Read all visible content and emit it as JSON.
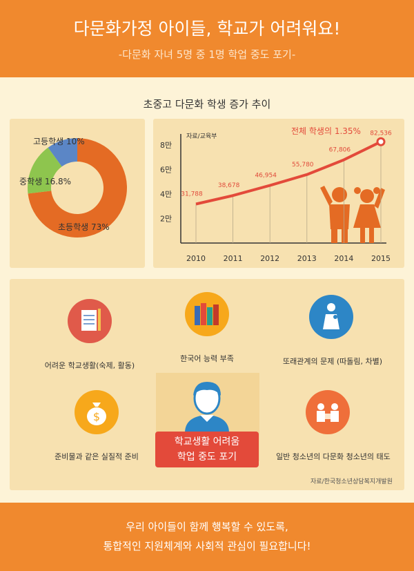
{
  "header": {
    "title": "다문화가정 아이들, 학교가 어려워요!",
    "subtitle": "-다문화 자녀 5명 중 1명 학업 중도 포기-"
  },
  "section_title": "초중고 다문화 학생 증가 추이",
  "colors": {
    "orange": "#f0892e",
    "dark_orange": "#e46b24",
    "green": "#8ec54e",
    "blue": "#5b86c6",
    "red": "#e34a3a",
    "cream": "#fdf3d7",
    "panel": "#f7e1b0"
  },
  "chart_data": [
    {
      "type": "pie",
      "donut": true,
      "slices": [
        {
          "label": "초등학생 73%",
          "value": 73
        },
        {
          "label": "중학생 16.8%",
          "value": 16.8
        },
        {
          "label": "고등학생 10%",
          "value": 10
        }
      ]
    },
    {
      "type": "line",
      "source": "자료/교육부",
      "annotation": "전체 학생의 1.35%",
      "x": [
        2010,
        2011,
        2012,
        2013,
        2014,
        2015
      ],
      "values": [
        31788,
        38678,
        46954,
        55780,
        67806,
        82536
      ],
      "value_labels": [
        "31,788",
        "38,678",
        "46,954",
        "55,780",
        "67,806",
        "82,536"
      ],
      "y_ticks": [
        {
          "value": 20000,
          "label": "2만"
        },
        {
          "value": 40000,
          "label": "4만"
        },
        {
          "value": 60000,
          "label": "6만"
        },
        {
          "value": 80000,
          "label": "8만"
        }
      ],
      "ylim": [
        0,
        90000
      ]
    }
  ],
  "issues": [
    {
      "label": "어려운 학교생활(숙제, 활동)",
      "icon": "notebook-icon"
    },
    {
      "label": "한국어 능력 부족",
      "icon": "books-icon"
    },
    {
      "label": "또래관계의 문제 (따돌림, 차별)",
      "icon": "mother-child-icon"
    },
    {
      "label": "준비물과 같은 실질적 준비",
      "icon": "money-bag-icon"
    },
    {
      "label": "일반 청소년의 다문화 청소년의 태도",
      "icon": "discussion-icon"
    }
  ],
  "center": {
    "line1": "학교생활 어려움",
    "line2": "학업 중도 포기"
  },
  "issues_source": "자료/한국청소년상담복지개발원",
  "footer": {
    "line1": "우리 아이들이 함께 행복할 수 있도록,",
    "line2": "통합적인 지원체계와 사회적 관심이 필요합니다!"
  }
}
